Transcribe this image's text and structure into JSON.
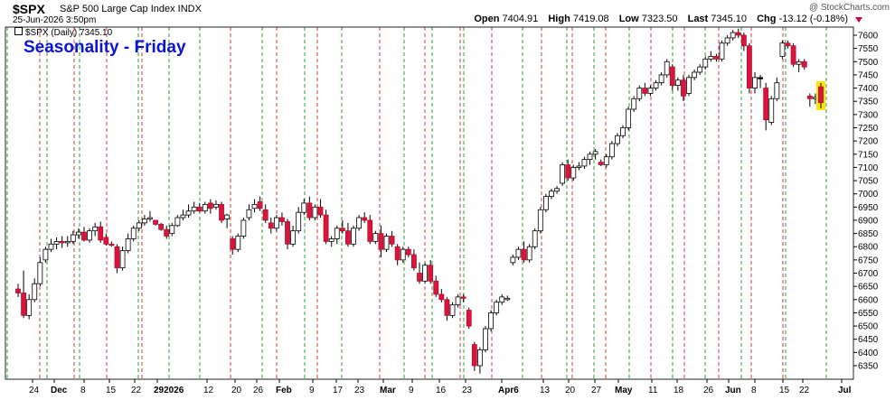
{
  "header": {
    "symbol": "$SPX",
    "name": "S&P 500 Large Cap Index INDX",
    "datetime": "25-Jun-2026 3:50pm",
    "open_label": "Open",
    "open": "7404.91",
    "high_label": "High",
    "high": "7419.08",
    "low_label": "Low",
    "low": "7323.50",
    "last_label": "Last",
    "last": "7345.10",
    "chg_label": "Chg",
    "chg": "-13.12 (-0.18%)",
    "watermark": "@ StockCharts.com"
  },
  "legend": {
    "series_label": "$SPX (Daily) 7345.10"
  },
  "chart_data": {
    "type": "candlestick",
    "title": "Seasonality - Friday",
    "series_name": "$SPX (Daily)",
    "ylim": [
      6300,
      7650
    ],
    "y_ticks": [
      6350,
      6400,
      6450,
      6500,
      6550,
      6600,
      6650,
      6700,
      6750,
      6800,
      6850,
      6900,
      6950,
      7000,
      7050,
      7100,
      7150,
      7200,
      7250,
      7300,
      7350,
      7400,
      7450,
      7500,
      7550,
      7600
    ],
    "x_tick_labels": [
      "24",
      "Dec",
      "8",
      "15",
      "22",
      "292026",
      "12",
      "20",
      "26",
      "Feb",
      "9",
      "17",
      "23",
      "Mar",
      "9",
      "16",
      "23",
      "Apr6",
      "13",
      "20",
      "27",
      "May",
      "11",
      "18",
      "26",
      "Jun",
      "8",
      "15",
      "22",
      "Jul"
    ],
    "grid": "vertical dashed lines; green marks week start (Monday), red marks Friday",
    "candle_colors": {
      "up": "#ffffff",
      "down": "#dc143c",
      "flat": "#000000",
      "highlight": "#ffe400"
    },
    "candles": [
      [
        6640,
        6660,
        6610,
        6625
      ],
      [
        6625,
        6710,
        6530,
        6540
      ],
      [
        6540,
        6620,
        6525,
        6600
      ],
      [
        6600,
        6680,
        6590,
        6660
      ],
      [
        6660,
        6760,
        6650,
        6740
      ],
      [
        6750,
        6800,
        6740,
        6790
      ],
      [
        6790,
        6830,
        6780,
        6810
      ],
      [
        6810,
        6835,
        6790,
        6820
      ],
      [
        6820,
        6840,
        6795,
        6815
      ],
      [
        6815,
        6840,
        6800,
        6820
      ],
      [
        6820,
        6860,
        6810,
        6845
      ],
      [
        6845,
        6870,
        6830,
        6855
      ],
      [
        6855,
        6875,
        6820,
        6825
      ],
      [
        6825,
        6870,
        6815,
        6860
      ],
      [
        6860,
        6890,
        6840,
        6875
      ],
      [
        6875,
        6895,
        6815,
        6825
      ],
      [
        6835,
        6850,
        6805,
        6810
      ],
      [
        6810,
        6820,
        6800,
        6805
      ],
      [
        6800,
        6810,
        6700,
        6720
      ],
      [
        6720,
        6800,
        6710,
        6785
      ],
      [
        6785,
        6850,
        6775,
        6830
      ],
      [
        6830,
        6880,
        6820,
        6870
      ],
      [
        6870,
        6900,
        6860,
        6890
      ],
      [
        6890,
        6920,
        6880,
        6905
      ],
      [
        6905,
        6935,
        6895,
        6910
      ],
      [
        6900,
        6900,
        6880,
        6885
      ],
      [
        6885,
        6890,
        6860,
        6865
      ],
      [
        6865,
        6880,
        6830,
        6840
      ],
      [
        6850,
        6890,
        6840,
        6880
      ],
      [
        6880,
        6920,
        6875,
        6910
      ],
      [
        6910,
        6940,
        6900,
        6920
      ],
      [
        6920,
        6960,
        6910,
        6935
      ],
      [
        6935,
        6970,
        6925,
        6950
      ],
      [
        6950,
        6965,
        6930,
        6935
      ],
      [
        6935,
        6970,
        6925,
        6960
      ],
      [
        6965,
        6980,
        6925,
        6945
      ],
      [
        6950,
        6975,
        6940,
        6960
      ],
      [
        6960,
        6970,
        6890,
        6900
      ],
      [
        6905,
        6925,
        6870,
        6920
      ],
      [
        6830,
        6840,
        6770,
        6790
      ],
      [
        6790,
        6850,
        6780,
        6840
      ],
      [
        6840,
        6910,
        6830,
        6900
      ],
      [
        6910,
        6960,
        6900,
        6940
      ],
      [
        6945,
        6980,
        6930,
        6960
      ],
      [
        6970,
        6990,
        6935,
        6945
      ],
      [
        6940,
        6960,
        6890,
        6900
      ],
      [
        6890,
        6910,
        6850,
        6870
      ],
      [
        6870,
        6920,
        6860,
        6910
      ],
      [
        6910,
        6930,
        6880,
        6895
      ],
      [
        6895,
        6905,
        6790,
        6810
      ],
      [
        6810,
        6880,
        6800,
        6860
      ],
      [
        6860,
        6950,
        6850,
        6930
      ],
      [
        6930,
        6980,
        6920,
        6965
      ],
      [
        6965,
        6990,
        6900,
        6910
      ],
      [
        6910,
        6960,
        6900,
        6950
      ],
      [
        6950,
        6980,
        6910,
        6920
      ],
      [
        6920,
        6940,
        6810,
        6820
      ],
      [
        6820,
        6840,
        6800,
        6830
      ],
      [
        6830,
        6880,
        6810,
        6870
      ],
      [
        6870,
        6900,
        6850,
        6860
      ],
      [
        6860,
        6890,
        6800,
        6810
      ],
      [
        6810,
        6880,
        6800,
        6870
      ],
      [
        6870,
        6920,
        6860,
        6910
      ],
      [
        6910,
        6930,
        6890,
        6900
      ],
      [
        6900,
        6920,
        6810,
        6820
      ],
      [
        6820,
        6860,
        6810,
        6850
      ],
      [
        6850,
        6880,
        6760,
        6790
      ],
      [
        6790,
        6850,
        6780,
        6840
      ],
      [
        6840,
        6860,
        6800,
        6810
      ],
      [
        6800,
        6810,
        6730,
        6750
      ],
      [
        6750,
        6800,
        6740,
        6790
      ],
      [
        6790,
        6800,
        6760,
        6770
      ],
      [
        6770,
        6790,
        6710,
        6720
      ],
      [
        6700,
        6740,
        6660,
        6670
      ],
      [
        6670,
        6740,
        6660,
        6730
      ],
      [
        6730,
        6750,
        6660,
        6670
      ],
      [
        6670,
        6690,
        6610,
        6620
      ],
      [
        6620,
        6640,
        6590,
        6600
      ],
      [
        6600,
        6610,
        6520,
        6540
      ],
      [
        6540,
        6590,
        6530,
        6580
      ],
      [
        6580,
        6620,
        6570,
        6610
      ],
      [
        6610,
        6620,
        6590,
        6605
      ],
      [
        6560,
        6570,
        6490,
        6500
      ],
      [
        6430,
        6440,
        6330,
        6350
      ],
      [
        6350,
        6420,
        6320,
        6410
      ],
      [
        6410,
        6500,
        6400,
        6490
      ],
      [
        6490,
        6560,
        6480,
        6550
      ],
      [
        6550,
        6600,
        6540,
        6590
      ],
      [
        6590,
        6620,
        6580,
        6610
      ],
      [
        6600,
        6615,
        6595,
        6605
      ],
      [
        6740,
        6770,
        6730,
        6760
      ],
      [
        6760,
        6800,
        6750,
        6790
      ],
      [
        6790,
        6820,
        6740,
        6750
      ],
      [
        6750,
        6810,
        6740,
        6800
      ],
      [
        6800,
        6870,
        6790,
        6860
      ],
      [
        6860,
        6950,
        6850,
        6940
      ],
      [
        6940,
        7000,
        6930,
        6990
      ],
      [
        6990,
        7020,
        6980,
        7010
      ],
      [
        7010,
        7030,
        7000,
        7020
      ],
      [
        7040,
        7120,
        7030,
        7110
      ],
      [
        7110,
        7130,
        7050,
        7060
      ],
      [
        7060,
        7110,
        7050,
        7100
      ],
      [
        7100,
        7120,
        7090,
        7105
      ],
      [
        7105,
        7140,
        7095,
        7130
      ],
      [
        7130,
        7160,
        7110,
        7150
      ],
      [
        7150,
        7170,
        7130,
        7160
      ],
      [
        7120,
        7130,
        7105,
        7110
      ],
      [
        7110,
        7150,
        7100,
        7140
      ],
      [
        7140,
        7200,
        7130,
        7190
      ],
      [
        7190,
        7230,
        7180,
        7220
      ],
      [
        7220,
        7260,
        7210,
        7250
      ],
      [
        7250,
        7330,
        7240,
        7320
      ],
      [
        7320,
        7370,
        7310,
        7360
      ],
      [
        7360,
        7410,
        7350,
        7400
      ],
      [
        7400,
        7420,
        7370,
        7380
      ],
      [
        7380,
        7410,
        7370,
        7400
      ],
      [
        7400,
        7430,
        7390,
        7420
      ],
      [
        7420,
        7460,
        7410,
        7450
      ],
      [
        7450,
        7510,
        7440,
        7500
      ],
      [
        7480,
        7490,
        7390,
        7410
      ],
      [
        7410,
        7440,
        7390,
        7430
      ],
      [
        7430,
        7450,
        7350,
        7370
      ],
      [
        7380,
        7450,
        7370,
        7440
      ],
      [
        7440,
        7470,
        7430,
        7460
      ],
      [
        7460,
        7490,
        7450,
        7480
      ],
      [
        7480,
        7520,
        7470,
        7510
      ],
      [
        7510,
        7540,
        7500,
        7520
      ],
      [
        7520,
        7530,
        7500,
        7510
      ],
      [
        7510,
        7580,
        7500,
        7570
      ],
      [
        7570,
        7600,
        7560,
        7590
      ],
      [
        7590,
        7620,
        7580,
        7610
      ],
      [
        7610,
        7625,
        7590,
        7600
      ],
      [
        7600,
        7610,
        7540,
        7560
      ],
      [
        7560,
        7570,
        7380,
        7400
      ],
      [
        7400,
        7460,
        7380,
        7440
      ],
      [
        7440,
        7450,
        7400,
        7440
      ],
      [
        7400,
        7420,
        7240,
        7280
      ],
      [
        7270,
        7370,
        7260,
        7360
      ],
      [
        7360,
        7440,
        7350,
        7420
      ],
      [
        7520,
        7580,
        7510,
        7570
      ],
      [
        7570,
        7580,
        7550,
        7560
      ],
      [
        7560,
        7570,
        7480,
        7490
      ],
      [
        7490,
        7510,
        7460,
        7500
      ],
      [
        7500,
        7510,
        7470,
        7480
      ],
      [
        7370,
        7380,
        7330,
        7360
      ],
      [
        7360,
        7380,
        7340,
        7365
      ],
      [
        7404.91,
        7419.08,
        7323.5,
        7345.1
      ]
    ]
  }
}
